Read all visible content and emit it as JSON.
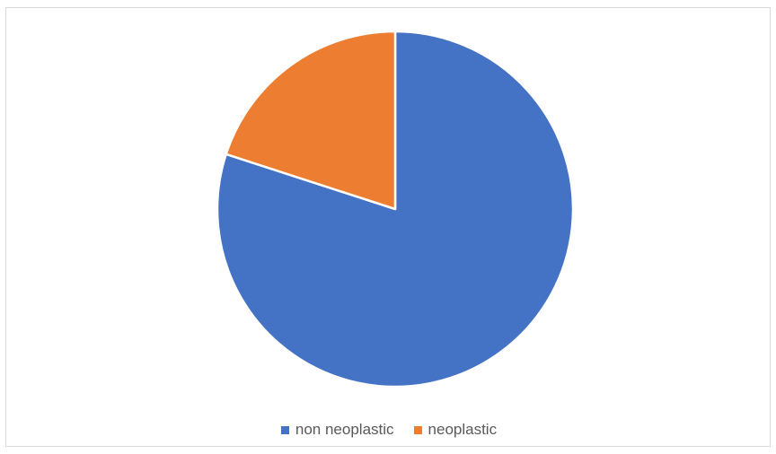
{
  "chart_data": {
    "type": "pie",
    "categories": [
      "non neoplastic",
      "neoplastic"
    ],
    "values": [
      80,
      20
    ],
    "colors": [
      "#4472c4",
      "#ed7d31"
    ],
    "start_angle_deg": 0,
    "direction": "clockwise",
    "legend_position": "bottom"
  }
}
